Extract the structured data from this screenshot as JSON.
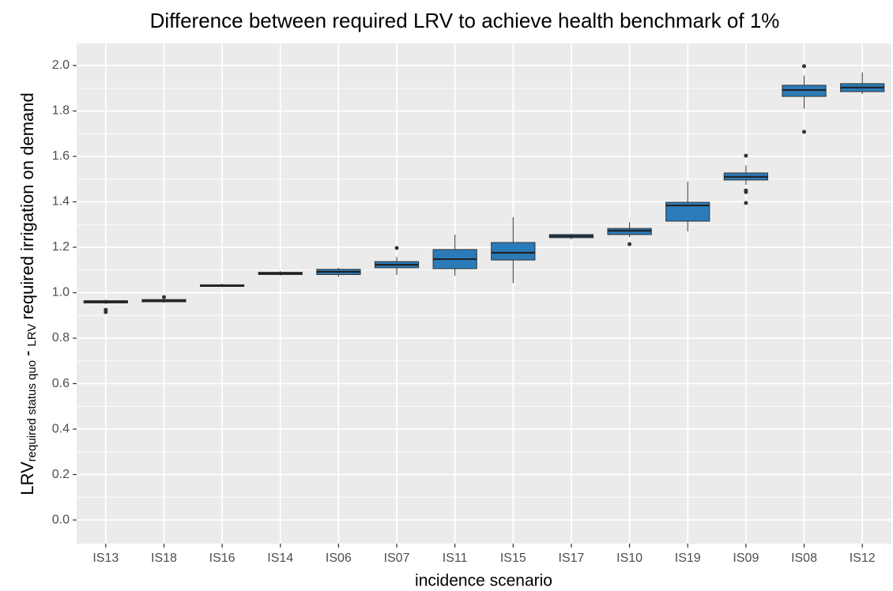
{
  "chart_data": {
    "type": "boxplot",
    "title": "Difference between required LRV to achieve health benchmark of 1%",
    "x_label": "incidence scenario",
    "y_label": [
      "LRV",
      "required status quo",
      "-",
      "LRV",
      "required irrigation on demand"
    ],
    "categories": [
      "IS13",
      "IS18",
      "IS16",
      "IS14",
      "IS06",
      "IS07",
      "IS11",
      "IS15",
      "IS17",
      "IS10",
      "IS19",
      "IS09",
      "IS08",
      "IS12"
    ],
    "color": "#2b7bb9",
    "grid": true,
    "ylim": [
      -0.104,
      2.097
    ],
    "yticks": [
      {
        "value": 0,
        "label": "0.0"
      },
      0.2,
      0.4,
      0.6,
      0.8,
      {
        "value": 1,
        "label": "1.0"
      },
      1.2,
      1.4,
      1.6,
      1.8,
      {
        "value": 2,
        "label": "2.0"
      }
    ],
    "boxes": [
      {
        "whisker_low": 0.95,
        "q1": 0.955,
        "median": 0.96,
        "q3": 0.965,
        "whisker_high": 0.97,
        "outliers": [
          0.925,
          0.915
        ]
      },
      {
        "whisker_low": 0.955,
        "q1": 0.96,
        "median": 0.965,
        "q3": 0.97,
        "whisker_high": 0.975,
        "outliers": [
          0.981
        ]
      },
      {
        "whisker_low": 1.025,
        "q1": 1.028,
        "median": 1.03,
        "q3": 1.035,
        "whisker_high": 1.04,
        "outliers": []
      },
      {
        "whisker_low": 1.075,
        "q1": 1.08,
        "median": 1.085,
        "q3": 1.09,
        "whisker_high": 1.095,
        "outliers": []
      },
      {
        "whisker_low": 1.07,
        "q1": 1.08,
        "median": 1.092,
        "q3": 1.103,
        "whisker_high": 1.11,
        "outliers": []
      },
      {
        "whisker_low": 1.078,
        "q1": 1.11,
        "median": 1.123,
        "q3": 1.137,
        "whisker_high": 1.158,
        "outliers": [
          1.197
        ]
      },
      {
        "whisker_low": 1.075,
        "q1": 1.106,
        "median": 1.148,
        "q3": 1.19,
        "whisker_high": 1.256,
        "outliers": []
      },
      {
        "whisker_low": 1.043,
        "q1": 1.144,
        "median": 1.176,
        "q3": 1.221,
        "whisker_high": 1.332,
        "outliers": []
      },
      {
        "whisker_low": 1.235,
        "q1": 1.242,
        "median": 1.249,
        "q3": 1.256,
        "whisker_high": 1.26,
        "outliers": []
      },
      {
        "whisker_low": 1.245,
        "q1": 1.256,
        "median": 1.273,
        "q3": 1.283,
        "whisker_high": 1.31,
        "outliers": [
          1.214
        ]
      },
      {
        "whisker_low": 1.27,
        "q1": 1.315,
        "median": 1.384,
        "q3": 1.398,
        "whisker_high": 1.489,
        "outliers": []
      },
      {
        "whisker_low": 1.475,
        "q1": 1.496,
        "median": 1.51,
        "q3": 1.527,
        "whisker_high": 1.56,
        "outliers": [
          1.603,
          1.45,
          1.443,
          1.395
        ]
      },
      {
        "whisker_low": 1.81,
        "q1": 1.864,
        "median": 1.892,
        "q3": 1.913,
        "whisker_high": 1.955,
        "outliers": [
          1.997,
          1.708
        ]
      },
      {
        "whisker_low": 1.875,
        "q1": 1.885,
        "median": 1.903,
        "q3": 1.92,
        "whisker_high": 1.97,
        "outliers": []
      }
    ]
  }
}
